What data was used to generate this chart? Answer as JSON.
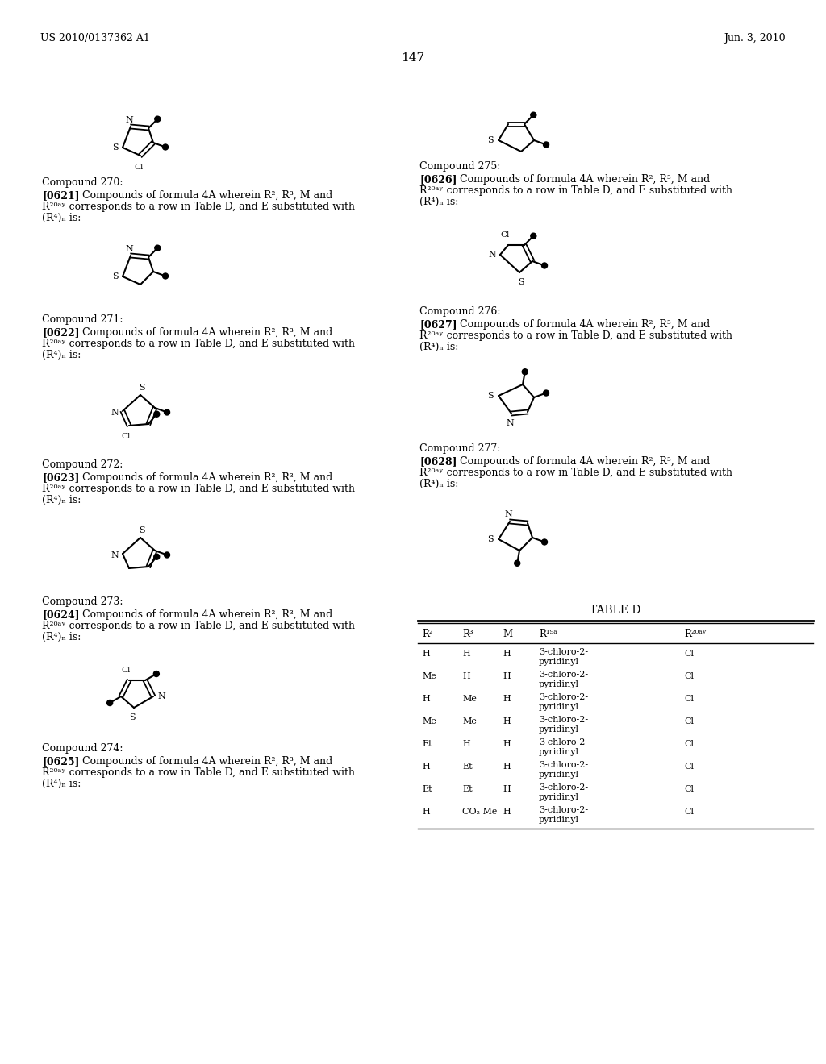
{
  "page_number": "147",
  "header_left": "US 2010/0137362 A1",
  "header_right": "Jun. 3, 2010",
  "background_color": "#ffffff"
}
